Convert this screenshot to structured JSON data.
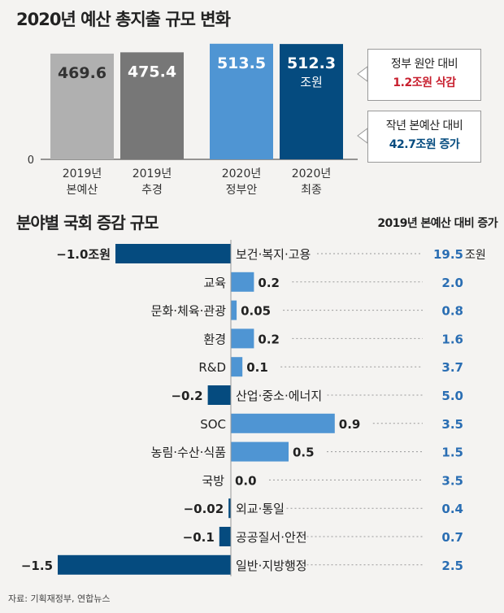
{
  "top": {
    "title": "2020년 예산 총지출 규모 변화",
    "unit": "조원",
    "zero_label": "0",
    "colors": {
      "2019년 본예산": "#b0b0b0",
      "2019년 추경": "#777777",
      "2020년 정부안": "#4f95d3",
      "2020년 최종": "#054b7f"
    },
    "callout_gov": {
      "line1": "정부 원안 대비",
      "line2": "1.2조원 삭감",
      "color": "#c8202f"
    },
    "callout_prev": {
      "line1": "작년 본예산 대비",
      "line2": "42.7조원 증가",
      "color": "#054b7f"
    }
  },
  "bottom": {
    "title": "분야별 국회 증감 규모",
    "subhead": "2019년 본예산 대비 증가",
    "first_left_label": "−1.0조원",
    "first_right_unit": "조원",
    "colors": {
      "positive": "#4f95d3",
      "negative": "#054b7f",
      "increase_text": "#2a6eb3"
    }
  },
  "source": "자료: 기획재정부, 연합뉴스",
  "chart_data": [
    {
      "type": "bar",
      "title": "2020년 예산 총지출 규모 변화",
      "categories": [
        "2019년 본예산",
        "2019년 추경",
        "2020년 정부안",
        "2020년 최종"
      ],
      "values": [
        469.6,
        475.4,
        513.5,
        512.3
      ],
      "value_labels": [
        "469.6",
        "475.4",
        "513.5",
        "512.3"
      ],
      "unit": "조원"
    },
    {
      "type": "bar",
      "title": "분야별 국회 증감 규모",
      "orientation": "horizontal",
      "categories": [
        "보건·복지·고용",
        "교육",
        "문화·체육·관광",
        "환경",
        "R&D",
        "산업·중소·에너지",
        "SOC",
        "농림·수산·식품",
        "국방",
        "외교·통일",
        "공공질서·안전",
        "일반·지방행정"
      ],
      "series": [
        {
          "values": [
            -1.0,
            0.2,
            0.05,
            0.2,
            0.1,
            -0.2,
            0.9,
            0.5,
            0.0,
            -0.02,
            -0.1,
            -1.5
          ],
          "value_labels": [
            "−1.0조원",
            "0.2",
            "0.05",
            "0.2",
            "0.1",
            "−0.2",
            "0.9",
            "0.5",
            "0.0",
            "−0.02",
            "−0.1",
            "−1.5"
          ]
        },
        {
          "name": "2019년 본예산 대비 증가",
          "values": [
            19.5,
            2.0,
            0.8,
            1.6,
            3.7,
            5.0,
            3.5,
            1.5,
            3.5,
            0.4,
            0.7,
            2.5
          ],
          "value_labels": [
            "19.5",
            "2.0",
            "0.8",
            "1.6",
            "3.7",
            "5.0",
            "3.5",
            "1.5",
            "3.5",
            "0.4",
            "0.7",
            "2.5"
          ]
        }
      ],
      "unit": "조원"
    }
  ]
}
